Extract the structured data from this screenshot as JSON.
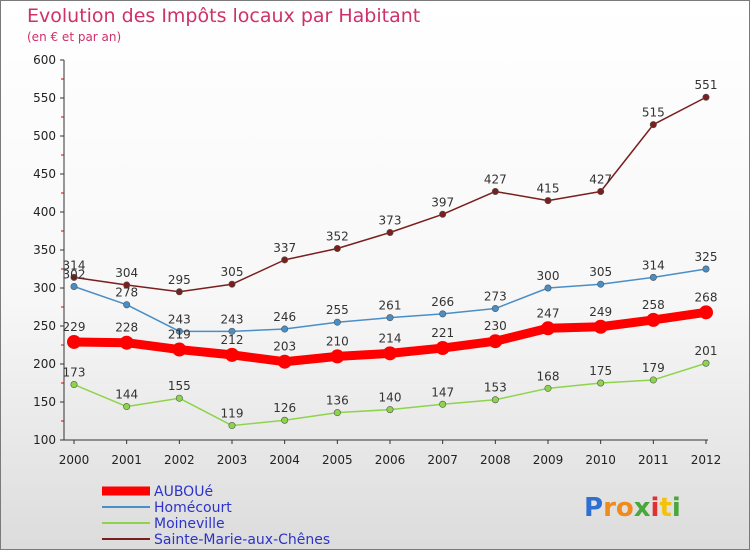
{
  "chart_data": {
    "type": "line",
    "title": "Evolution des Impôts locaux par Habitant",
    "subtitle": "(en € et par an)",
    "x": [
      "2000",
      "2001",
      "2002",
      "2003",
      "2004",
      "2005",
      "2006",
      "2007",
      "2008",
      "2009",
      "2010",
      "2011",
      "2012"
    ],
    "ylim": [
      100,
      600
    ],
    "yticks": [
      100,
      150,
      200,
      250,
      300,
      350,
      400,
      450,
      500,
      550,
      600
    ],
    "grid": false,
    "legend_position": "bottom-left",
    "series": [
      {
        "name": "AUBOUé",
        "color": "#ff0000",
        "values": [
          229,
          228,
          219,
          212,
          203,
          210,
          214,
          221,
          230,
          247,
          249,
          258,
          268
        ]
      },
      {
        "name": "Homécourt",
        "color": "#4a8ec6",
        "values": [
          302,
          278,
          243,
          243,
          246,
          255,
          261,
          266,
          273,
          300,
          305,
          314,
          325
        ]
      },
      {
        "name": "Moineville",
        "color": "#8ed44a",
        "values": [
          173,
          144,
          155,
          119,
          126,
          136,
          140,
          147,
          153,
          168,
          175,
          179,
          201
        ]
      },
      {
        "name": "Sainte-Marie-aux-Chênes",
        "color": "#7a1e1e",
        "values": [
          314,
          304,
          295,
          305,
          337,
          352,
          373,
          397,
          427,
          415,
          427,
          515,
          551
        ]
      }
    ]
  },
  "logo": {
    "text": "Proxiti"
  }
}
